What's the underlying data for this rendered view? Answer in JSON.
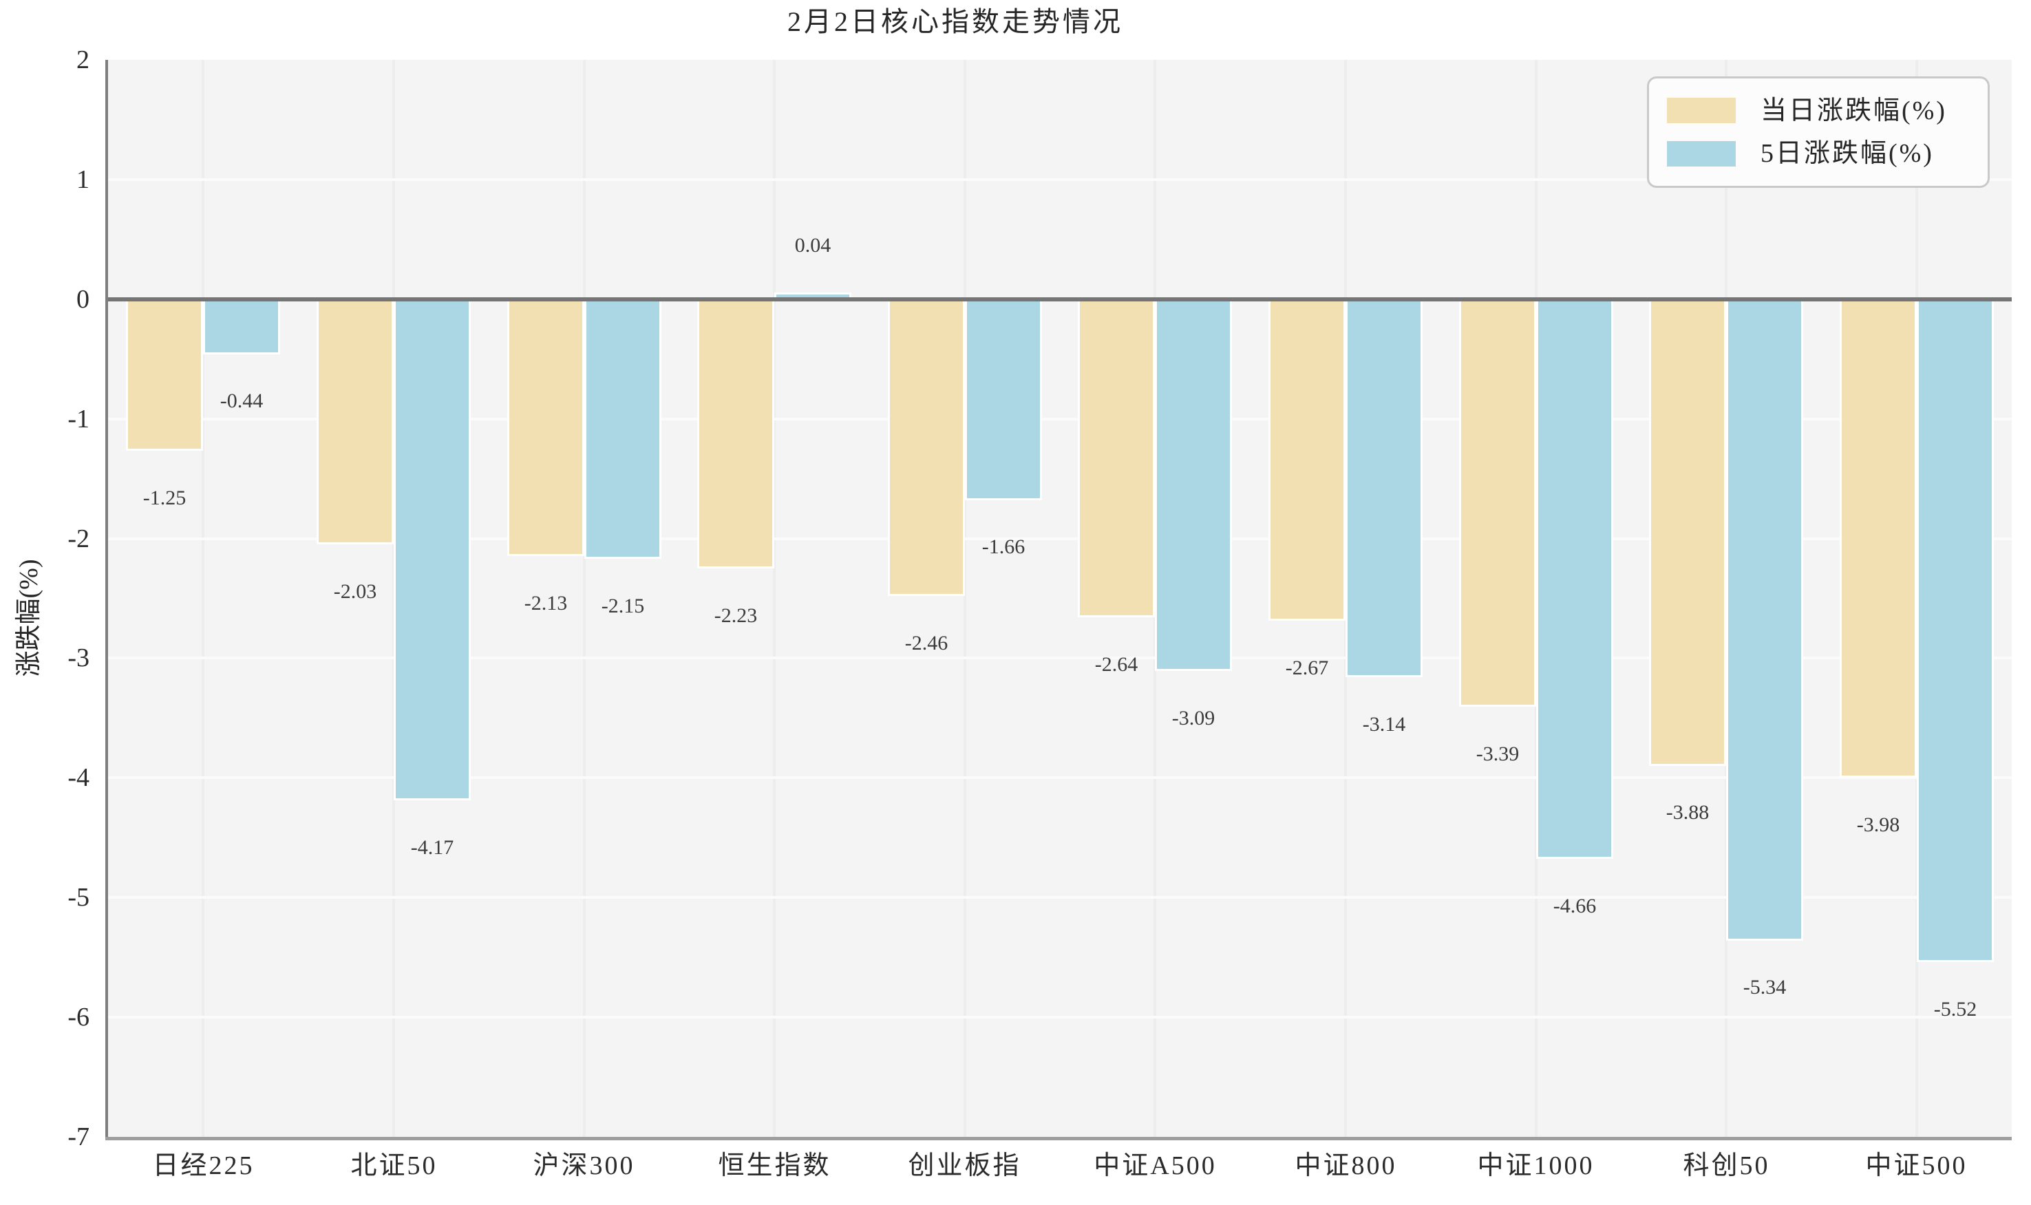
{
  "chart_data": {
    "type": "bar",
    "title": "2月2日核心指数走势情况",
    "xlabel": "",
    "ylabel": "涨跌幅(%)",
    "ylim": [
      -7,
      2
    ],
    "yticks": [
      2,
      1,
      0,
      -1,
      -2,
      -3,
      -4,
      -5,
      -6,
      -7
    ],
    "grid": true,
    "legend_position": "upper right",
    "plot_background": "#f4f4f4",
    "zero_line_color": "#757575",
    "categories": [
      "日经225",
      "北证50",
      "沪深300",
      "恒生指数",
      "创业板指",
      "中证A500",
      "中证800",
      "中证1000",
      "科创50",
      "中证500"
    ],
    "series": [
      {
        "name": "当日涨跌幅(%)",
        "color": "#f2dfb2",
        "values": [
          -1.25,
          -2.03,
          -2.13,
          -2.23,
          -2.46,
          -2.64,
          -2.67,
          -3.39,
          -3.88,
          -3.98
        ],
        "labels": [
          "-1.25",
          "-2.03",
          "-2.13",
          "-2.23",
          "-2.46",
          "-2.64",
          "-2.67",
          "-3.39",
          "-3.88",
          "-3.98"
        ]
      },
      {
        "name": "5日涨跌幅(%)",
        "color": "#abd7e4",
        "values": [
          -0.44,
          -4.17,
          -2.15,
          0.04,
          -1.66,
          -3.09,
          -3.14,
          -4.66,
          -5.34,
          -5.52
        ],
        "labels": [
          "-0.44",
          "-4.17",
          "-2.15",
          "0.04",
          "-1.66",
          "-3.09",
          "-3.14",
          "-4.66",
          "-5.34",
          "-5.52"
        ]
      }
    ]
  }
}
